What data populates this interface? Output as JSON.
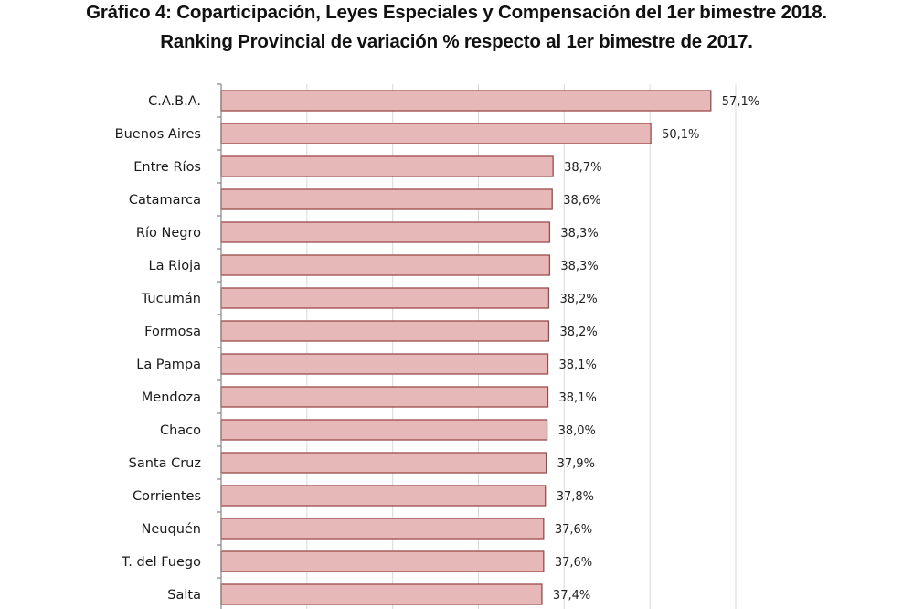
{
  "chart_data": {
    "type": "bar",
    "orientation": "horizontal",
    "title": "Gráfico 4: Coparticipación, Leyes Especiales y Compensación del 1er bimestre 2018.",
    "subtitle": "Ranking Provincial de variación % respecto al 1er bimestre de 2017.",
    "xlabel": "",
    "ylabel": "",
    "xlim": [
      0,
      60
    ],
    "x_grid_step": 10,
    "grid": true,
    "legend": "none",
    "value_suffix": "%",
    "decimal_separator": ",",
    "categories": [
      "C.A.B.A.",
      "Buenos Aires",
      "Entre Ríos",
      "Catamarca",
      "Río Negro",
      "La Rioja",
      "Tucumán",
      "Formosa",
      "La Pampa",
      "Mendoza",
      "Chaco",
      "Santa Cruz",
      "Corrientes",
      "Neuquén",
      "T. del Fuego",
      "Salta"
    ],
    "values": [
      57.1,
      50.1,
      38.7,
      38.6,
      38.3,
      38.3,
      38.2,
      38.2,
      38.1,
      38.1,
      38.0,
      37.9,
      37.8,
      37.6,
      37.6,
      37.4
    ],
    "data_labels": [
      "57,1%",
      "50,1%",
      "38,7%",
      "38,6%",
      "38,3%",
      "38,3%",
      "38,2%",
      "38,2%",
      "38,1%",
      "38,1%",
      "38,0%",
      "37,9%",
      "37,8%",
      "37,6%",
      "37,6%",
      "37,4%"
    ],
    "colors": {
      "bar_fill": "#E6B9B8",
      "bar_stroke": "#9C4A4A",
      "grid": "#D9D9D9",
      "axis": "#868686",
      "text": "#1a1a1a"
    }
  }
}
